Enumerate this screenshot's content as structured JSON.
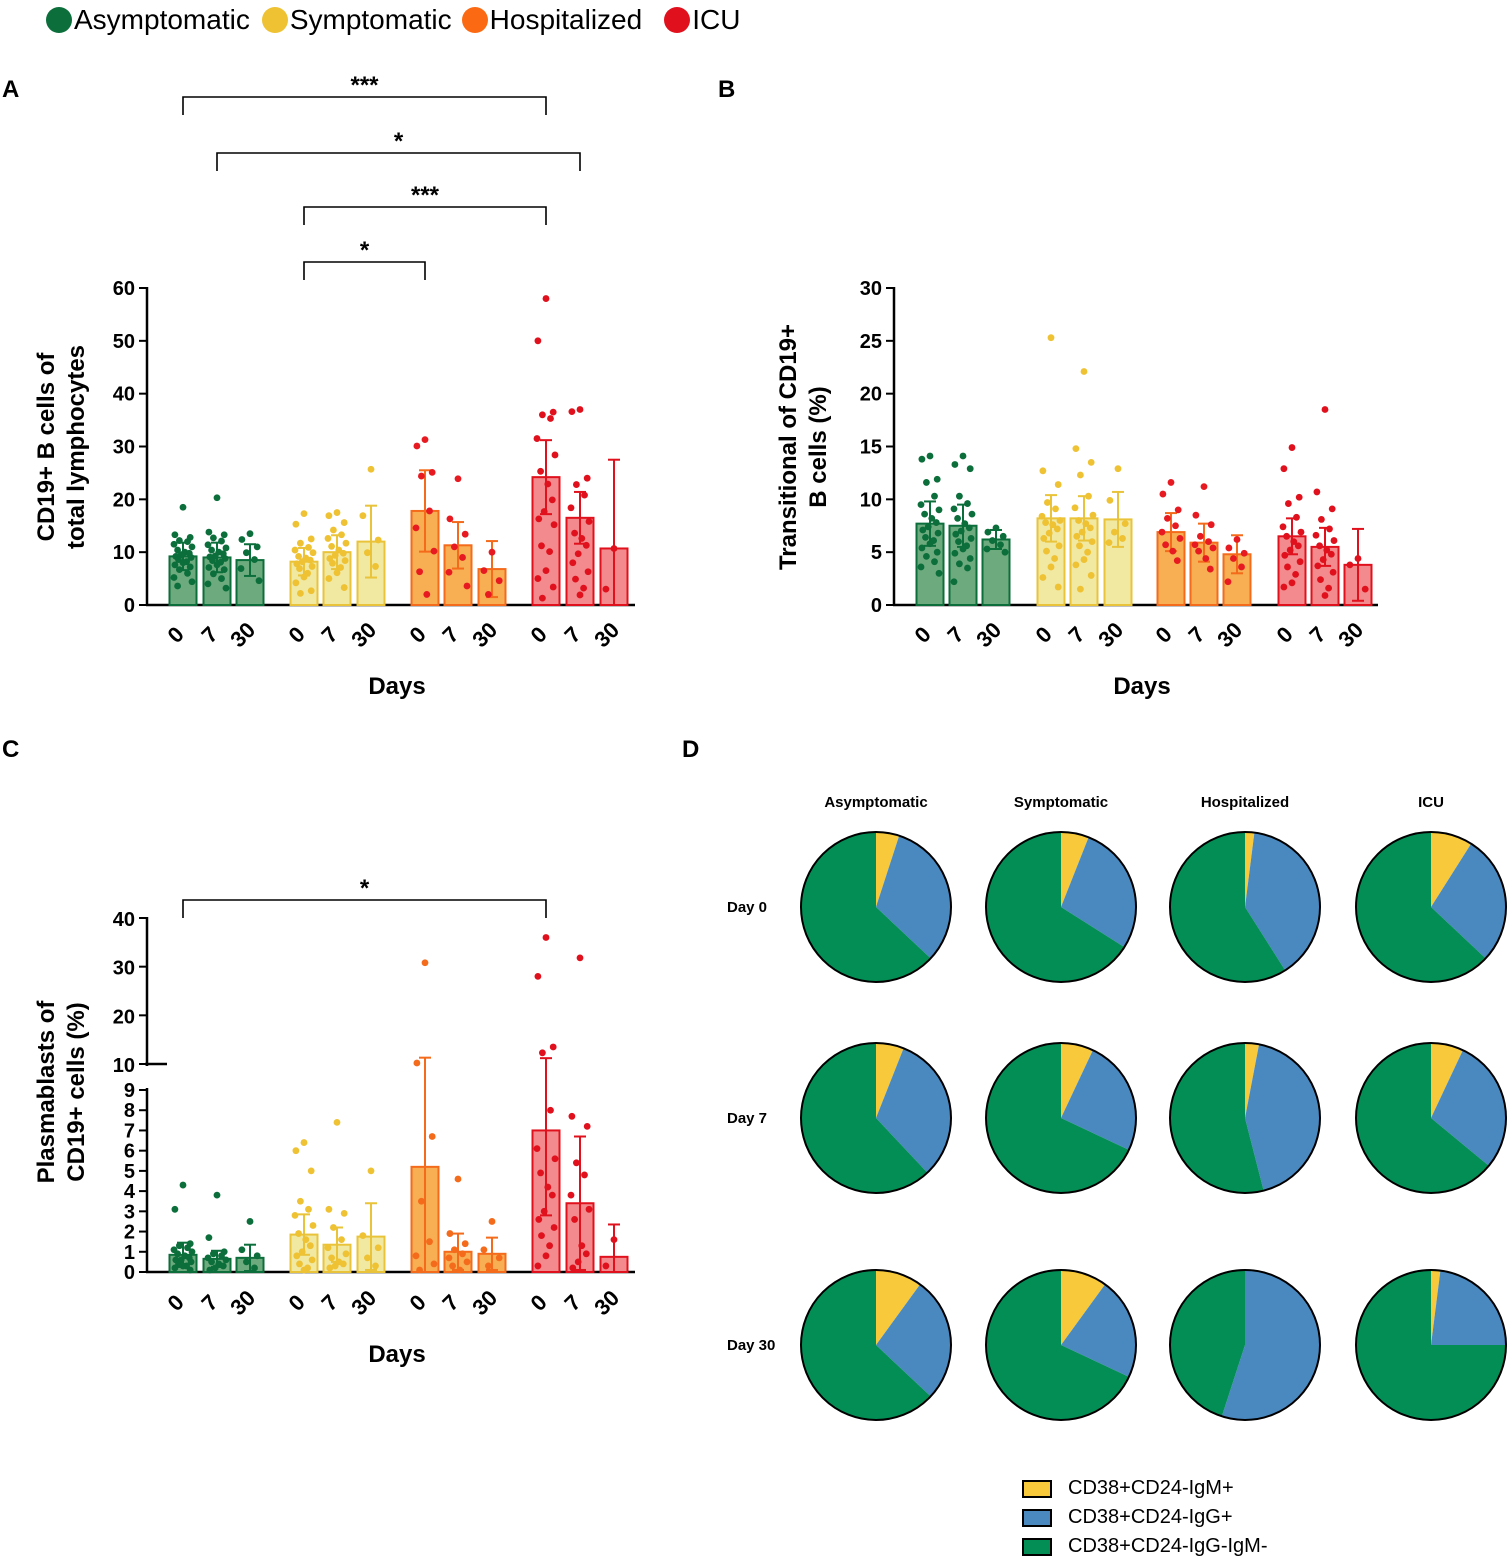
{
  "legend": [
    {
      "label": "Asymptomatic",
      "color": "#0b6e3b"
    },
    {
      "label": "Symptomatic",
      "color": "#eec233"
    },
    {
      "label": "Hospitalized",
      "color": "#fb6a13"
    },
    {
      "label": "ICU",
      "color": "#e0111d"
    }
  ],
  "panels": {
    "A": "A",
    "B": "B",
    "C": "C",
    "D": "D"
  },
  "group_colors": {
    "asym": {
      "fill": "#6dab7e",
      "stroke": "#0b6e3b",
      "dot": "#0b6e3b"
    },
    "sym": {
      "fill": "#f1e8a2",
      "stroke": "#e9c339",
      "dot": "#eec233"
    },
    "hosp": {
      "fill": "#f8ae53",
      "stroke": "#f36b1b",
      "dot": "#e81a21"
    },
    "hosp_c": {
      "fill": "#f8ae53",
      "stroke": "#f36b1b",
      "dot": "#f36b1b"
    },
    "icu": {
      "fill": "#f38a8d",
      "stroke": "#e0111d",
      "dot": "#e0111d"
    }
  },
  "chart_data": [
    {
      "id": "A",
      "type": "bar",
      "ylabel": [
        "CD19+ B cells of",
        "total lymphocytes"
      ],
      "xlabel": "Days",
      "ylim": [
        0,
        60
      ],
      "yticks": [
        0,
        10,
        20,
        30,
        40,
        50,
        60
      ],
      "categories": [
        "0",
        "7",
        "30",
        "0",
        "7",
        "30",
        "0",
        "7",
        "30",
        "0",
        "7",
        "30"
      ],
      "groups": [
        "asym",
        "asym",
        "asym",
        "sym",
        "sym",
        "sym",
        "hosp",
        "hosp",
        "hosp",
        "icu",
        "icu",
        "icu"
      ],
      "values": [
        9.2,
        9.0,
        8.5,
        8.2,
        10.0,
        12.0,
        17.8,
        11.3,
        6.8,
        24.2,
        16.5,
        10.7
      ],
      "sd": [
        2.6,
        2.8,
        3.0,
        2.6,
        3.2,
        6.8,
        7.7,
        4.4,
        5.3,
        7.0,
        4.9,
        16.8
      ],
      "points": [
        [
          18.5,
          13.3,
          12.8,
          12.2,
          12.0,
          11.5,
          11.0,
          10.4,
          10.0,
          9.8,
          9.5,
          9.2,
          9.0,
          8.6,
          8.2,
          8.0,
          7.6,
          7.2,
          6.7,
          6.0,
          5.2,
          4.4,
          3.6
        ],
        [
          20.3,
          13.8,
          13.3,
          12.7,
          12.1,
          11.4,
          10.8,
          10.4,
          10.0,
          9.7,
          9.3,
          9.1,
          8.8,
          8.4,
          8.1,
          7.6,
          7.1,
          6.7,
          5.9,
          5.0,
          4.0,
          3.2
        ],
        [
          13.5,
          12.4,
          11.0,
          9.9,
          8.6,
          6.9,
          4.6
        ],
        [
          17.3,
          15.3,
          12.5,
          11.7,
          10.9,
          10.4,
          9.9,
          9.2,
          8.9,
          8.5,
          8.2,
          7.8,
          7.3,
          6.9,
          6.0,
          5.3,
          4.2,
          2.7,
          2.2
        ],
        [
          17.5,
          16.9,
          15.6,
          14.2,
          13.3,
          12.6,
          11.7,
          11.1,
          10.4,
          9.8,
          9.4,
          8.8,
          8.4,
          7.9,
          7.1,
          6.1,
          5.0,
          3.3
        ],
        [
          25.7,
          16.9,
          12.3,
          9.9,
          7.3
        ],
        [
          31.3,
          30.1,
          25.1,
          24.4,
          17.8,
          14.6,
          10.2,
          6.3,
          2.0
        ],
        [
          23.9,
          16.3,
          13.4,
          11.0,
          9.0,
          6.2,
          3.6
        ],
        [
          10.0,
          6.5,
          4.6,
          2.0
        ],
        [
          58.0,
          50.0,
          36.5,
          36.0,
          35.3,
          31.5,
          28.4,
          25.3,
          22.9,
          19.9,
          17.7,
          16.3,
          15.2,
          11.2,
          10.1,
          6.5,
          5.0,
          3.4,
          1.3
        ],
        [
          37.0,
          36.6,
          24.0,
          22.8,
          20.8,
          18.4,
          15.8,
          13.6,
          12.6,
          11.3,
          9.7,
          8.0,
          6.3,
          4.9,
          3.2,
          1.9
        ],
        [
          10.7,
          3.0
        ]
      ],
      "annotations": [
        {
          "from": 0,
          "to": 9,
          "label": "***"
        },
        {
          "from": 1,
          "to": 10,
          "label": "*"
        },
        {
          "from": 3,
          "to": 9,
          "label": "***"
        },
        {
          "from": 3,
          "to": 6,
          "label": "*"
        }
      ]
    },
    {
      "id": "B",
      "type": "bar",
      "ylabel": [
        "Transitional of CD19+",
        "B cells (%)"
      ],
      "xlabel": "Days",
      "ylim": [
        0,
        30
      ],
      "yticks": [
        0,
        5,
        10,
        15,
        20,
        25,
        30
      ],
      "categories": [
        "0",
        "7",
        "30",
        "0",
        "7",
        "30",
        "0",
        "7",
        "30",
        "0",
        "7",
        "30"
      ],
      "groups": [
        "asym",
        "asym",
        "asym",
        "sym",
        "sym",
        "sym",
        "hosp",
        "hosp",
        "hosp",
        "icu",
        "icu",
        "icu"
      ],
      "values": [
        7.7,
        7.5,
        6.2,
        8.2,
        8.2,
        8.1,
        6.9,
        5.9,
        4.8,
        6.5,
        5.5,
        3.8
      ],
      "sd": [
        2.1,
        2.0,
        0.9,
        2.2,
        2.1,
        2.6,
        1.8,
        1.8,
        1.8,
        1.7,
        1.8,
        3.4
      ],
      "points": [
        [
          14.1,
          13.8,
          11.9,
          11.6,
          10.3,
          9.5,
          9.0,
          8.6,
          8.2,
          7.8,
          7.4,
          7.1,
          6.8,
          6.4,
          6.1,
          5.8,
          5.4,
          5.0,
          4.6,
          4.1,
          3.6,
          3.0
        ],
        [
          14.1,
          13.3,
          12.9,
          10.3,
          9.6,
          9.1,
          8.6,
          8.2,
          7.7,
          7.3,
          7.0,
          6.7,
          6.3,
          6.0,
          5.6,
          5.3,
          4.9,
          4.4,
          3.9,
          3.5,
          2.2
        ],
        [
          7.3,
          6.9,
          6.5,
          6.1,
          5.7,
          5.3,
          5.0
        ],
        [
          25.3,
          12.7,
          11.4,
          9.7,
          9.1,
          8.4,
          8.0,
          7.8,
          7.6,
          7.2,
          6.8,
          6.3,
          5.6,
          5.1,
          4.4,
          3.6,
          2.6,
          1.7
        ],
        [
          22.1,
          14.8,
          13.5,
          12.3,
          10.3,
          9.2,
          8.5,
          8.0,
          7.7,
          7.3,
          6.9,
          6.5,
          6.0,
          5.6,
          5.0,
          4.3,
          3.8,
          2.8,
          1.5
        ],
        [
          12.9,
          9.9,
          7.7,
          6.9,
          6.3,
          5.9
        ],
        [
          11.6,
          10.5,
          9.0,
          8.2,
          7.5,
          6.9,
          6.3,
          5.7,
          5.1,
          4.2
        ],
        [
          11.2,
          8.5,
          7.6,
          6.5,
          6.0,
          5.7,
          5.4,
          5.1,
          4.4,
          3.4
        ],
        [
          6.2,
          5.4,
          4.9,
          4.4,
          3.6,
          2.2
        ],
        [
          14.9,
          12.9,
          10.2,
          9.6,
          8.3,
          7.4,
          6.9,
          6.5,
          6.0,
          5.6,
          5.2,
          4.7,
          4.1,
          3.6,
          2.9,
          2.1,
          1.7
        ],
        [
          18.5,
          10.7,
          9.1,
          8.1,
          7.2,
          6.6,
          6.1,
          5.6,
          5.2,
          4.8,
          4.3,
          3.7,
          3.1,
          2.4,
          1.6,
          0.9
        ],
        [
          4.4,
          3.8,
          1.5
        ]
      ],
      "annotations": []
    },
    {
      "id": "C",
      "type": "bar",
      "broken_axis": true,
      "ylabel": [
        "Plasmablasts of",
        "CD19+ cells (%)"
      ],
      "xlabel": "Days",
      "ylim_lower": [
        0,
        9
      ],
      "ylim_upper": [
        10,
        40
      ],
      "yticks_lower": [
        0,
        1,
        2,
        3,
        4,
        5,
        6,
        7,
        8,
        9
      ],
      "yticks_upper": [
        10,
        20,
        30,
        40
      ],
      "categories": [
        "0",
        "7",
        "30",
        "0",
        "7",
        "30",
        "0",
        "7",
        "30",
        "0",
        "7",
        "30"
      ],
      "groups": [
        "asym",
        "asym",
        "asym",
        "sym",
        "sym",
        "sym",
        "hosp_c",
        "hosp_c",
        "hosp_c",
        "icu",
        "icu",
        "icu"
      ],
      "values": [
        0.85,
        0.65,
        0.7,
        1.85,
        1.35,
        1.75,
        5.2,
        1.0,
        0.9,
        7.0,
        3.4,
        0.75
      ],
      "sd": [
        0.6,
        0.4,
        0.65,
        1.0,
        0.85,
        1.65,
        6.1,
        0.9,
        0.8,
        4.2,
        3.3,
        1.6
      ],
      "points": [
        [
          4.3,
          3.1,
          1.4,
          1.3,
          1.2,
          1.1,
          1.0,
          0.9,
          0.8,
          0.7,
          0.6,
          0.6,
          0.5,
          0.4,
          0.3,
          0.3,
          0.2,
          0.1
        ],
        [
          3.8,
          1.7,
          1.0,
          0.9,
          0.8,
          0.7,
          0.6,
          0.5,
          0.4,
          0.3,
          0.2,
          0.1
        ],
        [
          2.5,
          1.1,
          0.8,
          0.5,
          0.2
        ],
        [
          6.4,
          6.0,
          5.0,
          3.5,
          3.1,
          2.8,
          2.3,
          1.9,
          1.6,
          1.3,
          1.0,
          0.8,
          0.6,
          0.4,
          0.2,
          0.1
        ],
        [
          7.4,
          3.1,
          2.9,
          2.2,
          1.6,
          1.2,
          0.9,
          0.7,
          0.5,
          0.4,
          0.3,
          0.2
        ],
        [
          5.0,
          1.8,
          1.2,
          0.7,
          0.3
        ],
        [
          30.8,
          10.2,
          6.7,
          3.5,
          1.5,
          0.8,
          0.4,
          0.1
        ],
        [
          4.6,
          1.9,
          1.4,
          1.1,
          0.9,
          0.7,
          0.5,
          0.3,
          0.1
        ],
        [
          2.5,
          1.1,
          0.7,
          0.3
        ],
        [
          36.0,
          28.0,
          13.5,
          12.3,
          8.0,
          6.1,
          5.6,
          4.9,
          4.2,
          3.8,
          3.0,
          2.6,
          2.2,
          1.8,
          1.3,
          0.8,
          0.3
        ],
        [
          31.8,
          7.7,
          7.2,
          5.4,
          4.8,
          3.8,
          3.1,
          2.6,
          1.3,
          0.9,
          0.5,
          0.2
        ],
        [
          1.6,
          0.3
        ]
      ],
      "annotations": [
        {
          "from": 0,
          "to": 9,
          "label": "*"
        }
      ]
    },
    {
      "id": "D",
      "type": "pie",
      "columns": [
        "Asymptomatic",
        "Symptomatic",
        "Hospitalized",
        "ICU"
      ],
      "rows": [
        "Day 0",
        "Day 7",
        "Day 30"
      ],
      "slice_labels": [
        "CD38+CD24-IgM+",
        "CD38+CD24-IgG+",
        "CD38+CD24-IgG-IgM-"
      ],
      "slice_colors": [
        "#f8ca3b",
        "#4a89c0",
        "#038e55"
      ],
      "values": [
        [
          [
            5,
            32,
            63
          ],
          [
            6,
            28,
            66
          ],
          [
            2,
            39,
            59
          ],
          [
            9,
            28,
            63
          ]
        ],
        [
          [
            6,
            32,
            62
          ],
          [
            7,
            25,
            68
          ],
          [
            3,
            43,
            54
          ],
          [
            7,
            29,
            64
          ]
        ],
        [
          [
            10,
            27,
            63
          ],
          [
            10,
            22,
            68
          ],
          [
            0,
            55,
            45
          ],
          [
            2,
            23,
            75
          ]
        ]
      ]
    }
  ]
}
